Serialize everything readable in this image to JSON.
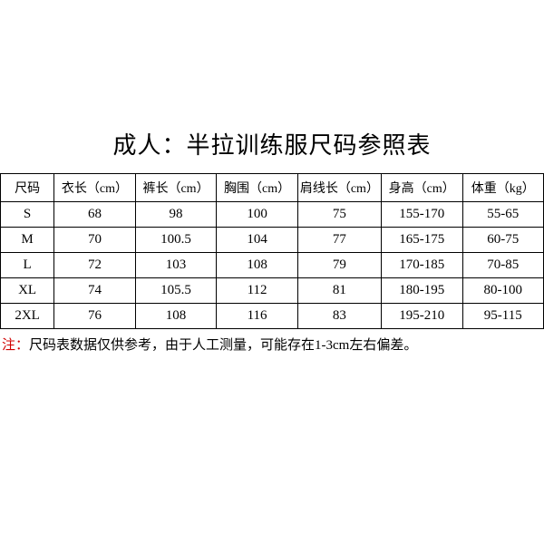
{
  "title": "成人：半拉训练服尺码参照表",
  "table": {
    "columns": [
      "尺码",
      "衣长（cm）",
      "裤长（cm）",
      "胸围（cm）",
      "肩线长（cm）",
      "身高（cm）",
      "体重（kg）"
    ],
    "rows": [
      [
        "S",
        "68",
        "98",
        "100",
        "75",
        "155-170",
        "55-65"
      ],
      [
        "M",
        "70",
        "100.5",
        "104",
        "77",
        "165-175",
        "60-75"
      ],
      [
        "L",
        "72",
        "103",
        "108",
        "79",
        "170-185",
        "70-85"
      ],
      [
        "XL",
        "74",
        "105.5",
        "112",
        "81",
        "180-195",
        "80-100"
      ],
      [
        "2XL",
        "76",
        "108",
        "116",
        "83",
        "195-210",
        "95-115"
      ]
    ],
    "column_widths": [
      "10%",
      "15%",
      "15%",
      "15%",
      "15%",
      "15%",
      "15%"
    ]
  },
  "note": {
    "label": "注：",
    "text": "尺码表数据仅供参考，由于人工测量，可能存在1-3cm左右偏差。",
    "label_color": "#d00000"
  },
  "styling": {
    "background_color": "#ffffff",
    "text_color": "#000000",
    "border_color": "#000000",
    "title_fontsize": 26,
    "table_fontsize": 15,
    "note_fontsize": 15,
    "font_family": "SimSun"
  }
}
